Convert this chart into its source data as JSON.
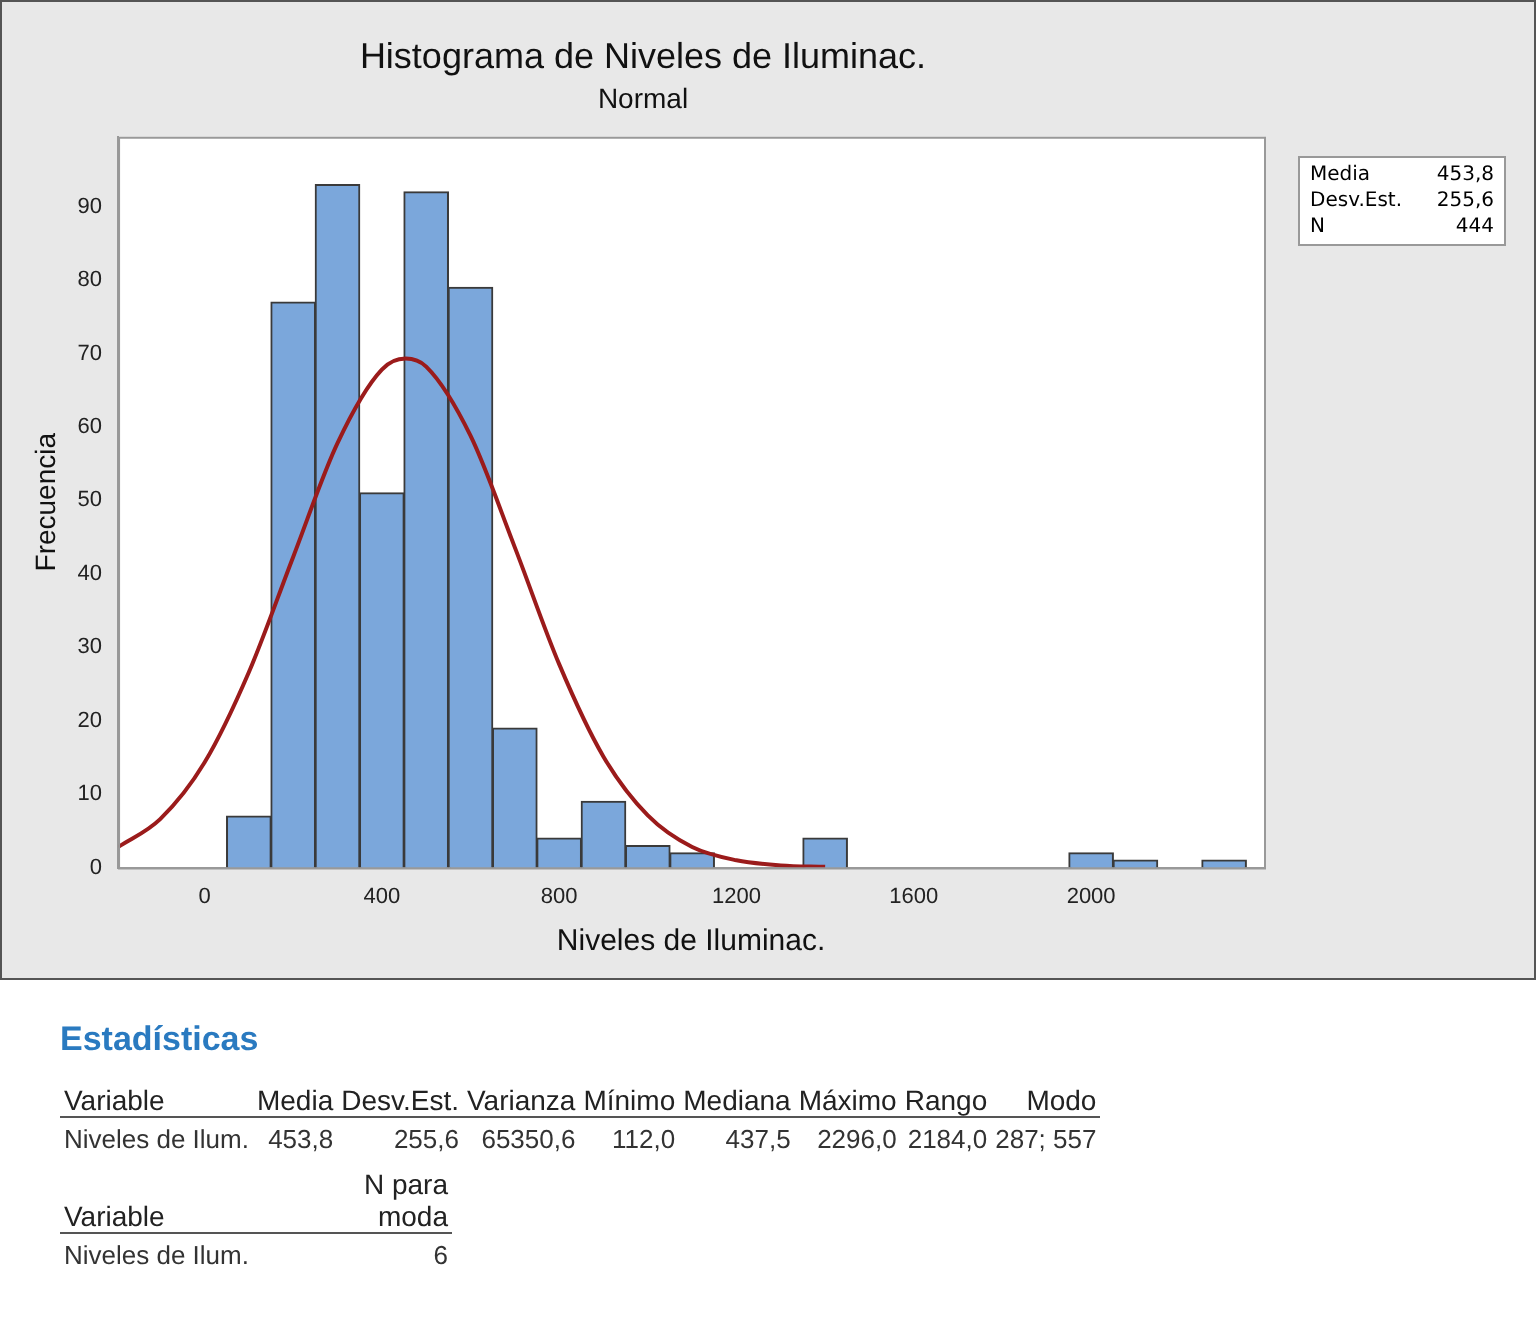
{
  "chart_data": {
    "type": "histogram",
    "title": "Histograma de Niveles de Iluminac.",
    "subtitle": "Normal",
    "xlabel": "Niveles de Iluminac.",
    "ylabel": "Frecuencia",
    "bins": [
      50,
      150,
      250,
      350,
      450,
      550,
      650,
      750,
      850,
      950,
      1050,
      1150,
      1250,
      1350,
      1450,
      1550,
      1650,
      1750,
      1850,
      1950,
      2050,
      2150,
      2250,
      2350
    ],
    "values": [
      7,
      77,
      93,
      51,
      92,
      79,
      19,
      4,
      9,
      3,
      2,
      0,
      0,
      4,
      0,
      0,
      0,
      0,
      0,
      2,
      1,
      0,
      1
    ],
    "color": "#7ba7db",
    "series": [
      {
        "type": "line",
        "color": "#9b1b1b",
        "x": [
          -195,
          -100,
          0,
          100,
          200,
          300,
          400,
          453.8,
          500,
          600,
          700,
          800,
          900,
          1000,
          1100,
          1200,
          1300,
          1400
        ],
        "values": [
          2.8,
          6.6,
          14.3,
          26.6,
          42.3,
          57.8,
          67.8,
          69.3,
          68.2,
          58.8,
          43.6,
          27.7,
          15.1,
          7.1,
          2.8,
          1.0,
          0.3,
          0.1
        ]
      }
    ],
    "xlim": [
      -195,
      2390
    ],
    "ylim": [
      0,
      99.5
    ],
    "xticks": [
      0,
      400,
      800,
      1200,
      1600,
      2000
    ],
    "yticks": [
      0,
      10,
      20,
      30,
      40,
      50,
      60,
      70,
      80,
      90
    ],
    "grid": false,
    "legend": false,
    "marker": "none",
    "line_style": "solid",
    "annotations": [
      "Media",
      "453,8",
      "Desv.Est.",
      "255,6",
      "N",
      "444",
      "Estadísticas",
      "Variable",
      "Media",
      "Desv.Est.",
      "Varianza",
      "Mínimo",
      "Mediana",
      "Máximo",
      "Rango",
      "Modo",
      "Niveles de Ilum.",
      "453,8",
      "255,6",
      "65350,6",
      "112,0",
      "437,5",
      "2296,0",
      "2184,0",
      "287; 557",
      "Variable",
      "N para moda",
      "Niveles de Ilum.",
      "6"
    ]
  }
}
